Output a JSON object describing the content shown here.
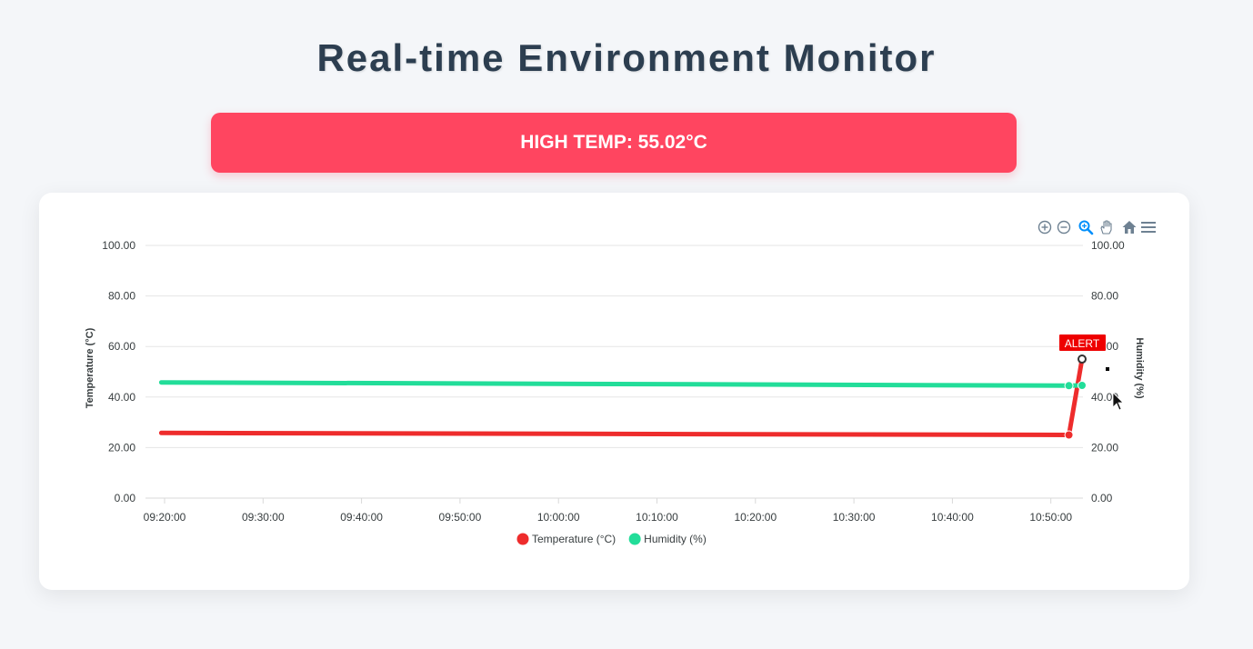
{
  "page": {
    "title": "Real-time Environment Monitor"
  },
  "alert": {
    "text": "HIGH TEMP: 55.02°C",
    "color": "#ff4560"
  },
  "toolbar": {
    "icons": [
      "zoom-in-icon",
      "zoom-out-icon",
      "selection-zoom-icon",
      "pan-icon",
      "reset-home-icon",
      "menu-icon"
    ],
    "active": "selection-zoom-icon"
  },
  "chart_data": {
    "type": "line",
    "x_ticks": [
      "09:20:00",
      "09:30:00",
      "09:40:00",
      "09:50:00",
      "10:00:00",
      "10:10:00",
      "10:20:00",
      "10:30:00",
      "10:40:00",
      "10:50:00"
    ],
    "y_ticks": [
      "0.00",
      "20.00",
      "40.00",
      "60.00",
      "80.00",
      "100.00"
    ],
    "ylim": [
      0,
      100
    ],
    "y2lim": [
      0,
      100
    ],
    "ylabel": "Temperature (°C)",
    "y2label": "Humidity (%)",
    "grid": true,
    "legend_position": "bottom",
    "series": [
      {
        "name": "Temperature (°C)",
        "color": "#ee2c2c",
        "axis": "left",
        "points": [
          [
            "09:19:40",
            25.8
          ],
          [
            "10:51:50",
            25.0
          ],
          [
            "10:53:10",
            55.02
          ]
        ]
      },
      {
        "name": "Humidity (%)",
        "color": "#22dd99",
        "axis": "right",
        "points": [
          [
            "09:19:40",
            45.8
          ],
          [
            "10:51:50",
            44.5
          ],
          [
            "10:53:10",
            44.6
          ]
        ]
      }
    ],
    "annotation": {
      "text": "ALERT",
      "x": "10:53:10",
      "y": 55.02,
      "color": "#ee0000"
    }
  }
}
